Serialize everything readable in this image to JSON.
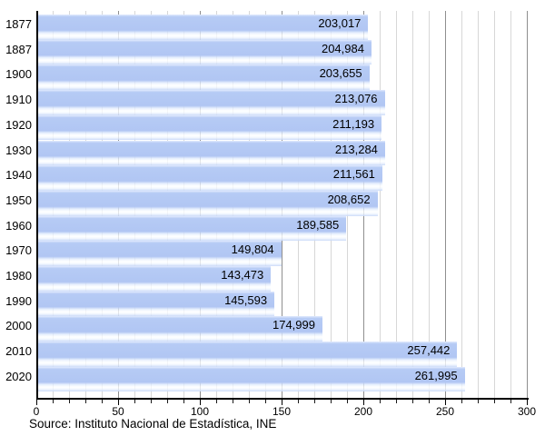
{
  "chart_data": {
    "type": "bar",
    "orientation": "horizontal",
    "categories": [
      "1877",
      "1887",
      "1900",
      "1910",
      "1920",
      "1930",
      "1940",
      "1950",
      "1960",
      "1970",
      "1980",
      "1990",
      "2000",
      "2010",
      "2020"
    ],
    "values": [
      203017,
      204984,
      203655,
      213076,
      211193,
      213284,
      211561,
      208652,
      189585,
      149804,
      143473,
      145593,
      174999,
      257442,
      261995
    ],
    "value_labels": [
      "203,017",
      "204,984",
      "203,655",
      "213,076",
      "211,193",
      "213,284",
      "211,561",
      "208,652",
      "189,585",
      "149,804",
      "143,473",
      "145,593",
      "174,999",
      "257,442",
      "261,995"
    ],
    "x_axis": {
      "min": 0,
      "max": 300,
      "minor_step": 10,
      "major_step": 50,
      "tick_labels": [
        "0",
        "50",
        "100",
        "150",
        "200",
        "250",
        "300"
      ],
      "unit_scale": "thousands"
    },
    "grid": "on",
    "legend": "none",
    "source": "Source: Instituto Nacional de Estadística, INE",
    "colors": {
      "bar": "#b1c6f3",
      "bar_top_seam": "#e2ebfd",
      "bar_gloss": "#ffffff",
      "grid_minor": "#d7d7d7",
      "grid_major": "#8f8f8f",
      "axis": "#000000",
      "text": "#000000",
      "background": "#ffffff"
    }
  }
}
